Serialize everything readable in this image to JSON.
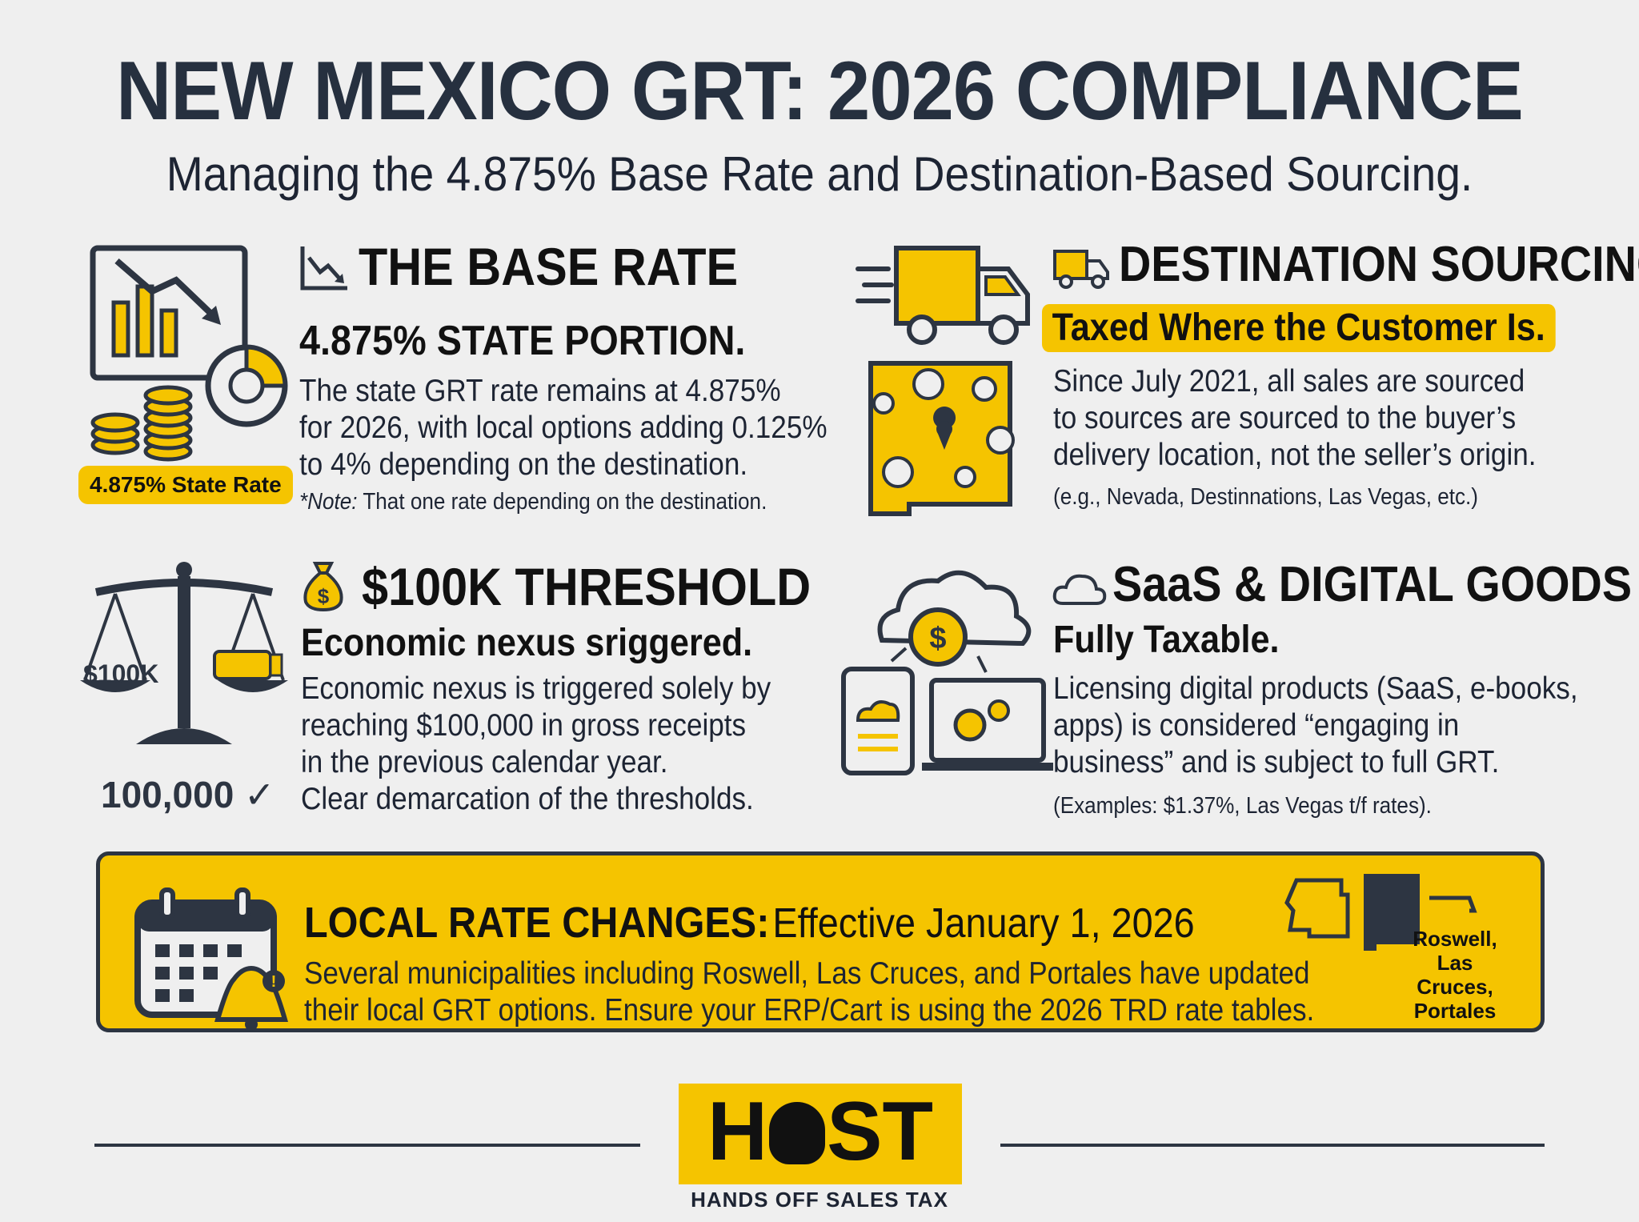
{
  "header": {
    "title": "NEW MEXICO GRT: 2026 COMPLIANCE",
    "subtitle": "Managing the 4.875% Base Rate and Destination-Based Sourcing."
  },
  "base_rate": {
    "title": "THE BASE RATE",
    "subtitle": "4.875% STATE PORTION.",
    "body": [
      "The state GRT rate remains at 4.875%",
      "for 2026, with local options adding 0.125%",
      "to 4% depending on the destination."
    ],
    "note_label": "*Note:",
    "note_text": "That one rate depending on the destination.",
    "pill": "4.875% State Rate",
    "icon": "chart-down-icon"
  },
  "destination": {
    "title": "DESTINATION SOURCING",
    "highlight": "Taxed Where the Customer Is.",
    "body": [
      "Since July 2021, all sales are sourced",
      "to sources are sourced to the buyer’s",
      "delivery location, not the seller’s origin."
    ],
    "note": "(e.g., Nevada, Destinnations, Las Vegas, etc.)",
    "icon": "truck-icon"
  },
  "threshold": {
    "title": "$100K THRESHOLD",
    "subtitle": "Economic nexus sriggered.",
    "body": [
      "Economic nexus is triggered solely by",
      "reaching $100,000 in gross receipts",
      "in the previous calendar year.",
      "Clear demarcation of the thresholds."
    ],
    "scale_label": "$100K",
    "amount": "100,000",
    "icon": "money-bag-icon"
  },
  "saas": {
    "title": "SaaS & DIGITAL GOODS",
    "subtitle": "Fully Taxable.",
    "body": [
      "Licensing digital products (SaaS, e-books,",
      "apps) is considered “engaging in",
      "business” and is subject to full GRT."
    ],
    "note": "(Examples: $1.37%, Las Vegas t/f rates).",
    "icon": "cloud-icon"
  },
  "local_changes": {
    "title": "LOCAL RATE CHANGES:",
    "effective": "Effective January 1, 2026",
    "body": [
      "Several municipalities including Roswell, Las Cruces, and Portales have updated",
      "their local GRT options. Ensure your ERP/Cart is using the 2026 TRD rate tables."
    ],
    "map_labels": [
      "Roswell,",
      "Las Cruces,",
      "Portales"
    ]
  },
  "footer": {
    "logo_left": "H",
    "logo_right": "ST",
    "tagline": "HANDS OFF SALES TAX"
  },
  "colors": {
    "accent": "#f5c400",
    "dark": "#2d3542",
    "background": "#efefef"
  }
}
